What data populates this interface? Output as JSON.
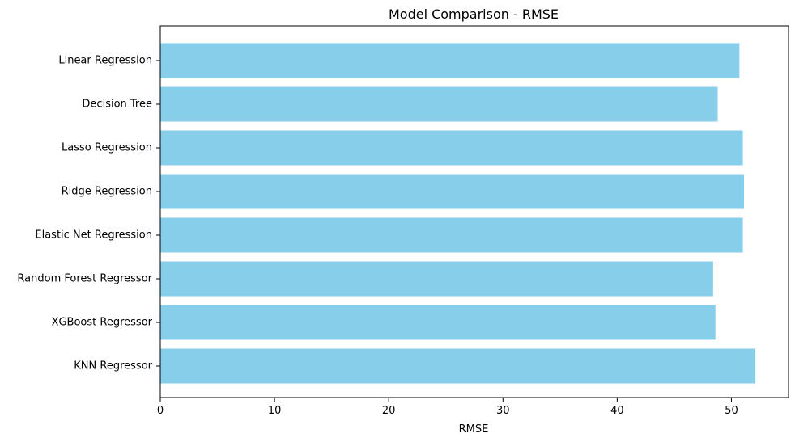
{
  "chart_data": {
    "type": "bar",
    "orientation": "horizontal",
    "title": "Model Comparison - RMSE",
    "xlabel": "RMSE",
    "ylabel": "",
    "categories": [
      "Linear Regression",
      "Decision Tree",
      "Lasso Regression",
      "Ridge Regression",
      "Elastic Net Regression",
      "Random Forest Regressor",
      "XGBoost Regressor",
      "KNN Regressor"
    ],
    "values": [
      50.7,
      48.8,
      51.0,
      51.1,
      51.0,
      48.4,
      48.6,
      52.1
    ],
    "xlim": [
      0,
      55
    ],
    "xticks": [
      0,
      10,
      20,
      30,
      40,
      50
    ],
    "grid": false,
    "bar_color": "#87CEEB"
  }
}
